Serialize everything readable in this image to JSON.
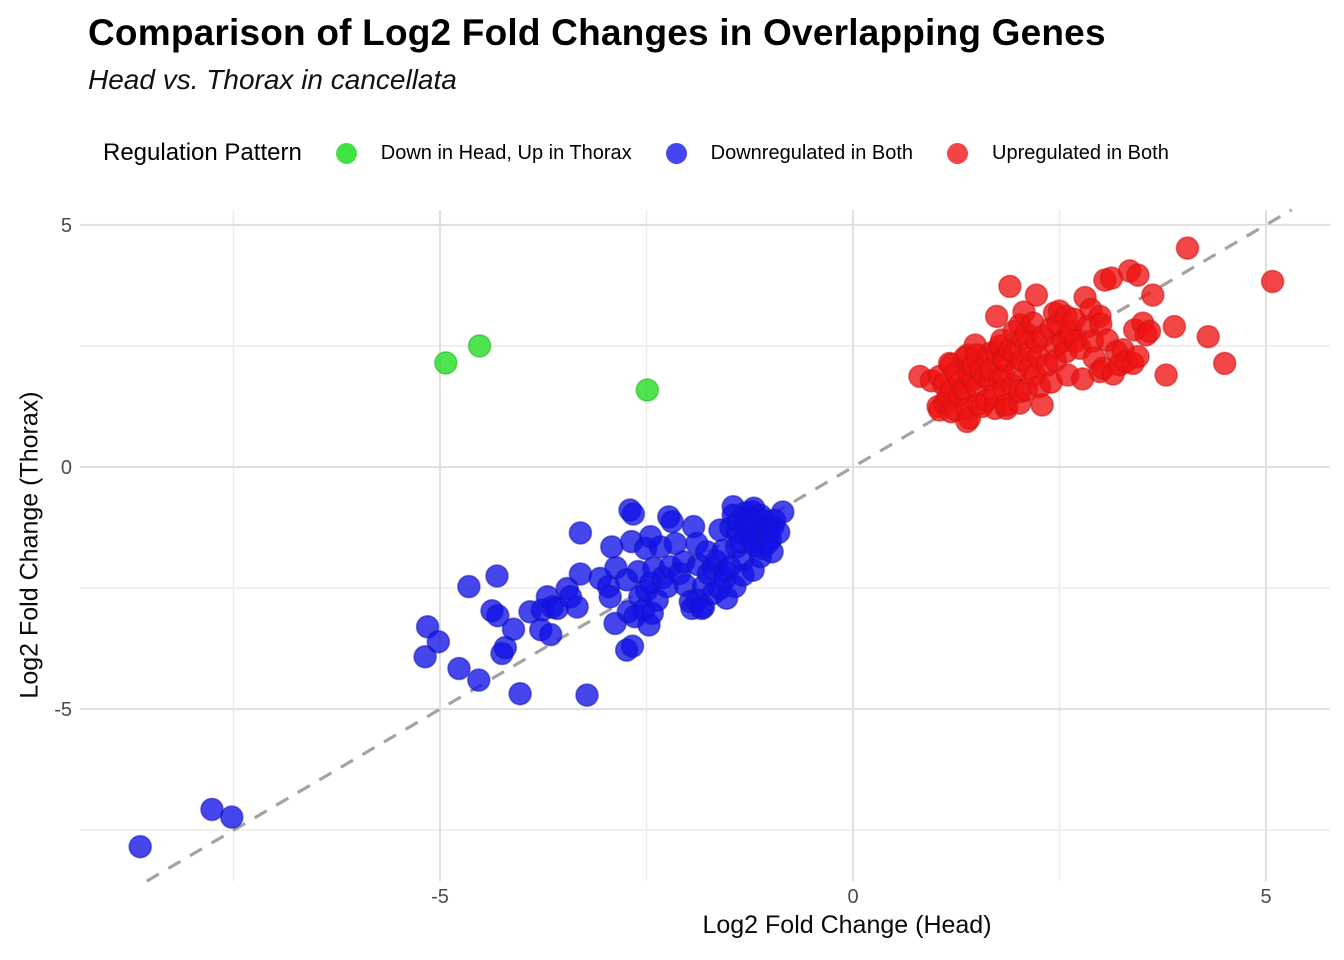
{
  "title": "Comparison of Log2 Fold Changes in Overlapping Genes",
  "subtitle": "Head vs. Thorax in cancellata",
  "legend": {
    "title": "Regulation Pattern",
    "items": [
      {
        "label": "Down in Head, Up in Thorax",
        "color": "#42e242"
      },
      {
        "label": "Downregulated in Both",
        "color": "#4646f0"
      },
      {
        "label": "Upregulated in Both",
        "color": "#f24646"
      }
    ]
  },
  "axes": {
    "x": {
      "title": "Log2 Fold Change (Head)",
      "tick_labels": [
        "-5",
        "0",
        "5"
      ],
      "tick_values": [
        -5,
        0,
        5
      ],
      "minor_values": [
        -7.5,
        -2.5,
        2.5
      ],
      "range": [
        -9.35,
        5.78
      ]
    },
    "y": {
      "title": "Log2 Fold Change (Thorax)",
      "tick_labels": [
        "5",
        "0",
        "-5"
      ],
      "tick_values": [
        5,
        0,
        -5
      ],
      "minor_values": [
        2.5,
        -2.5,
        -7.5
      ],
      "range": [
        -8.55,
        5.31
      ]
    }
  },
  "reference_line": {
    "type": "identity y = x",
    "style": "dashed",
    "color": "#a3a3a3",
    "from": -8.55,
    "to": 5.31
  },
  "colors": {
    "grid_major": "#dfdfdf",
    "grid_minor": "#ececec",
    "tick_text": "#4c4c4c"
  },
  "chart_data": {
    "type": "scatter",
    "title": "Comparison of Log2 Fold Changes in Overlapping Genes",
    "subtitle": "Head vs. Thorax in cancellata",
    "xlabel": "Log2 Fold Change (Head)",
    "ylabel": "Log2 Fold Change (Thorax)",
    "xlim": [
      -9.35,
      5.78
    ],
    "ylim": [
      -8.55,
      5.31
    ],
    "grid": true,
    "legend_position": "top",
    "legend_title": "Regulation Pattern",
    "series": [
      {
        "name": "Down in Head, Up in Thorax",
        "fill": "#1ddd1d",
        "stroke": "#17b517",
        "points": [
          [
            -4.93,
            2.15
          ],
          [
            -4.52,
            2.5
          ],
          [
            -2.49,
            1.59
          ]
        ]
      },
      {
        "name": "Downregulated in Both",
        "fill": "#1212e8",
        "stroke": "#1414b8",
        "points": [
          [
            -8.63,
            -7.84
          ],
          [
            -7.76,
            -7.07
          ],
          [
            -7.52,
            -7.23
          ],
          [
            -5.18,
            -3.92
          ],
          [
            -5.15,
            -3.3
          ],
          [
            -5.02,
            -3.61
          ],
          [
            -4.77,
            -4.16
          ],
          [
            -4.65,
            -2.47
          ],
          [
            -4.53,
            -4.4
          ],
          [
            -4.37,
            -2.97
          ],
          [
            -4.31,
            -2.25
          ],
          [
            -4.3,
            -3.07
          ],
          [
            -4.25,
            -3.85
          ],
          [
            -4.21,
            -3.73
          ],
          [
            -4.11,
            -3.35
          ],
          [
            -4.03,
            -4.68
          ],
          [
            -3.91,
            -2.99
          ],
          [
            -3.78,
            -3.36
          ],
          [
            -3.76,
            -2.95
          ],
          [
            -3.7,
            -2.68
          ],
          [
            -3.66,
            -3.46
          ],
          [
            -3.64,
            -2.89
          ],
          [
            -3.58,
            -2.92
          ],
          [
            -3.46,
            -2.51
          ],
          [
            -3.42,
            -2.68
          ],
          [
            -3.34,
            -2.89
          ],
          [
            -3.3,
            -2.21
          ],
          [
            -3.3,
            -1.36
          ],
          [
            -3.22,
            -4.71
          ],
          [
            -3.06,
            -2.3
          ],
          [
            -2.96,
            -2.47
          ],
          [
            -2.94,
            -2.68
          ],
          [
            -2.92,
            -1.65
          ],
          [
            -2.88,
            -3.23
          ],
          [
            -2.87,
            -2.08
          ],
          [
            -2.74,
            -2.33
          ],
          [
            -2.74,
            -3.78
          ],
          [
            -2.72,
            -2.99
          ],
          [
            -2.7,
            -0.89
          ],
          [
            -2.68,
            -1.54
          ],
          [
            -2.67,
            -3.7
          ],
          [
            -2.66,
            -0.97
          ],
          [
            -2.64,
            -3.09
          ],
          [
            -2.6,
            -2.16
          ],
          [
            -2.58,
            -2.68
          ],
          [
            -2.53,
            -2.95
          ],
          [
            -2.51,
            -1.68
          ],
          [
            -2.5,
            -2.55
          ],
          [
            -2.47,
            -3.26
          ],
          [
            -2.45,
            -1.44
          ],
          [
            -2.45,
            -2.4
          ],
          [
            -2.43,
            -3.02
          ],
          [
            -2.41,
            -2.09
          ],
          [
            -2.37,
            -2.75
          ],
          [
            -2.33,
            -1.65
          ],
          [
            -2.3,
            -2.28
          ],
          [
            -2.25,
            -2.47
          ],
          [
            -2.23,
            -1.03
          ],
          [
            -2.21,
            -2.06
          ],
          [
            -2.19,
            -1.13
          ],
          [
            -2.15,
            -1.58
          ],
          [
            -2.1,
            -2.2
          ],
          [
            -2.05,
            -1.96
          ],
          [
            -2.03,
            -2.44
          ],
          [
            -1.97,
            -2.78
          ],
          [
            -1.95,
            -2.92
          ],
          [
            -1.93,
            -1.23
          ],
          [
            -1.89,
            -1.58
          ],
          [
            -1.89,
            -2.75
          ],
          [
            -1.87,
            -2.02
          ],
          [
            -1.83,
            -2.92
          ],
          [
            -1.81,
            -2.47
          ],
          [
            -1.81,
            -2.89
          ],
          [
            -1.77,
            -1.75
          ],
          [
            -1.75,
            -2.2
          ],
          [
            -1.69,
            -2.61
          ],
          [
            -1.69,
            -2.09
          ],
          [
            -1.65,
            -1.95
          ],
          [
            -1.61,
            -1.3
          ],
          [
            -1.61,
            -2.51
          ],
          [
            -1.57,
            -1.72
          ],
          [
            -1.55,
            -2.16
          ],
          [
            -1.55,
            -2.3
          ],
          [
            -1.53,
            -2.71
          ],
          [
            -1.49,
            -2.06
          ],
          [
            -1.45,
            -0.82
          ],
          [
            -1.43,
            -2.47
          ],
          [
            -1.41,
            -1.65
          ],
          [
            -1.33,
            -1.92
          ],
          [
            -1.33,
            -2.23
          ],
          [
            -1.21,
            -2.13
          ],
          [
            -1.48,
            -1.25
          ],
          [
            -1.45,
            -1.0
          ],
          [
            -1.4,
            -1.35
          ],
          [
            -1.38,
            -1.12
          ],
          [
            -1.35,
            -1.55
          ],
          [
            -1.3,
            -0.95
          ],
          [
            -1.3,
            -1.1
          ],
          [
            -1.28,
            -1.25
          ],
          [
            -1.25,
            -1.45
          ],
          [
            -1.22,
            -0.92
          ],
          [
            -1.22,
            -1.18
          ],
          [
            -1.2,
            -0.85
          ],
          [
            -1.19,
            -1.54
          ],
          [
            -1.18,
            -1.62
          ],
          [
            -1.15,
            -1.3
          ],
          [
            -1.12,
            -1.0
          ],
          [
            -1.12,
            -1.85
          ],
          [
            -1.1,
            -1.68
          ],
          [
            -1.09,
            -1.1
          ],
          [
            -1.05,
            -1.22
          ],
          [
            -1.04,
            -1.58
          ],
          [
            -1.02,
            -1.35
          ],
          [
            -1.0,
            -1.5
          ],
          [
            -0.98,
            -1.75
          ],
          [
            -0.97,
            -1.23
          ],
          [
            -0.95,
            -1.1
          ],
          [
            -0.9,
            -1.35
          ],
          [
            -0.85,
            -0.93
          ]
        ]
      },
      {
        "name": "Upregulated in Both",
        "fill": "#ef1212",
        "stroke": "#c81414",
        "points": [
          [
            0.81,
            1.87
          ],
          [
            0.95,
            1.78
          ],
          [
            1.03,
            1.25
          ],
          [
            1.05,
            1.18
          ],
          [
            1.05,
            1.87
          ],
          [
            1.1,
            1.7
          ],
          [
            1.11,
            1.32
          ],
          [
            1.15,
            1.45
          ],
          [
            1.17,
            2.14
          ],
          [
            1.19,
            1.14
          ],
          [
            1.19,
            2.11
          ],
          [
            1.2,
            1.6
          ],
          [
            1.25,
            1.18
          ],
          [
            1.25,
            1.95
          ],
          [
            1.29,
            1.49
          ],
          [
            1.3,
            1.75
          ],
          [
            1.35,
            1.6
          ],
          [
            1.35,
            2.25
          ],
          [
            1.38,
            0.94
          ],
          [
            1.38,
            1.21
          ],
          [
            1.39,
            2.31
          ],
          [
            1.41,
            1.01
          ],
          [
            1.41,
            1.9
          ],
          [
            1.45,
            1.8
          ],
          [
            1.45,
            2.1
          ],
          [
            1.48,
            2.52
          ],
          [
            1.5,
            1.65
          ],
          [
            1.5,
            2.31
          ],
          [
            1.52,
            1.3
          ],
          [
            1.55,
            2.0
          ],
          [
            1.56,
            1.25
          ],
          [
            1.6,
            1.87
          ],
          [
            1.62,
            1.38
          ],
          [
            1.64,
            2.18
          ],
          [
            1.66,
            1.8
          ],
          [
            1.66,
            2.35
          ],
          [
            1.68,
            2.0
          ],
          [
            1.72,
            1.21
          ],
          [
            1.72,
            1.49
          ],
          [
            1.74,
            2.38
          ],
          [
            1.74,
            3.11
          ],
          [
            1.78,
            1.8
          ],
          [
            1.78,
            2.5
          ],
          [
            1.8,
            2.62
          ],
          [
            1.82,
            1.87
          ],
          [
            1.82,
            2.21
          ],
          [
            1.84,
            1.59
          ],
          [
            1.85,
            2.2
          ],
          [
            1.86,
            1.21
          ],
          [
            1.86,
            1.28
          ],
          [
            1.9,
            2.42
          ],
          [
            1.9,
            3.73
          ],
          [
            1.94,
            1.69
          ],
          [
            1.95,
            2.35
          ],
          [
            1.95,
            2.8
          ],
          [
            1.98,
            2.0
          ],
          [
            2.02,
            1.32
          ],
          [
            2.02,
            1.56
          ],
          [
            2.02,
            2.93
          ],
          [
            2.05,
            2.2
          ],
          [
            2.06,
            2.66
          ],
          [
            2.07,
            3.2
          ],
          [
            2.1,
            1.59
          ],
          [
            2.1,
            2.75
          ],
          [
            2.14,
            2.04
          ],
          [
            2.15,
            2.4
          ],
          [
            2.18,
            2.97
          ],
          [
            2.2,
            1.9
          ],
          [
            2.22,
            2.59
          ],
          [
            2.22,
            3.55
          ],
          [
            2.24,
            2.28
          ],
          [
            2.26,
            1.66
          ],
          [
            2.29,
            1.28
          ],
          [
            2.3,
            2.7
          ],
          [
            2.35,
            2.1
          ],
          [
            2.4,
            1.75
          ],
          [
            2.4,
            2.86
          ],
          [
            2.44,
            3.18
          ],
          [
            2.45,
            2.2
          ],
          [
            2.46,
            2.49
          ],
          [
            2.48,
            2.95
          ],
          [
            2.5,
            3.22
          ],
          [
            2.55,
            2.6
          ],
          [
            2.58,
            2.38
          ],
          [
            2.58,
            3.11
          ],
          [
            2.6,
            1.9
          ],
          [
            2.62,
            2.73
          ],
          [
            2.64,
            2.8
          ],
          [
            2.68,
            3.05
          ],
          [
            2.7,
            2.6
          ],
          [
            2.75,
            2.45
          ],
          [
            2.78,
            1.82
          ],
          [
            2.81,
            3.5
          ],
          [
            2.84,
            2.9
          ],
          [
            2.88,
            3.25
          ],
          [
            2.9,
            2.6
          ],
          [
            2.92,
            2.25
          ],
          [
            2.99,
            1.97
          ],
          [
            2.99,
            3.11
          ],
          [
            3.0,
            2.95
          ],
          [
            3.03,
            2.04
          ],
          [
            3.05,
            3.86
          ],
          [
            3.08,
            2.62
          ],
          [
            3.13,
            3.9
          ],
          [
            3.15,
            1.92
          ],
          [
            3.19,
            2.38
          ],
          [
            3.23,
            2.11
          ],
          [
            3.27,
            2.42
          ],
          [
            3.31,
            2.18
          ],
          [
            3.35,
            4.05
          ],
          [
            3.39,
            2.14
          ],
          [
            3.41,
            2.83
          ],
          [
            3.45,
            2.28
          ],
          [
            3.45,
            3.96
          ],
          [
            3.51,
            2.97
          ],
          [
            3.55,
            2.73
          ],
          [
            3.59,
            2.8
          ],
          [
            3.63,
            3.55
          ],
          [
            3.79,
            1.9
          ],
          [
            3.89,
            2.9
          ],
          [
            4.05,
            4.52
          ],
          [
            4.3,
            2.69
          ],
          [
            4.5,
            2.14
          ],
          [
            5.08,
            3.83
          ]
        ]
      }
    ]
  }
}
